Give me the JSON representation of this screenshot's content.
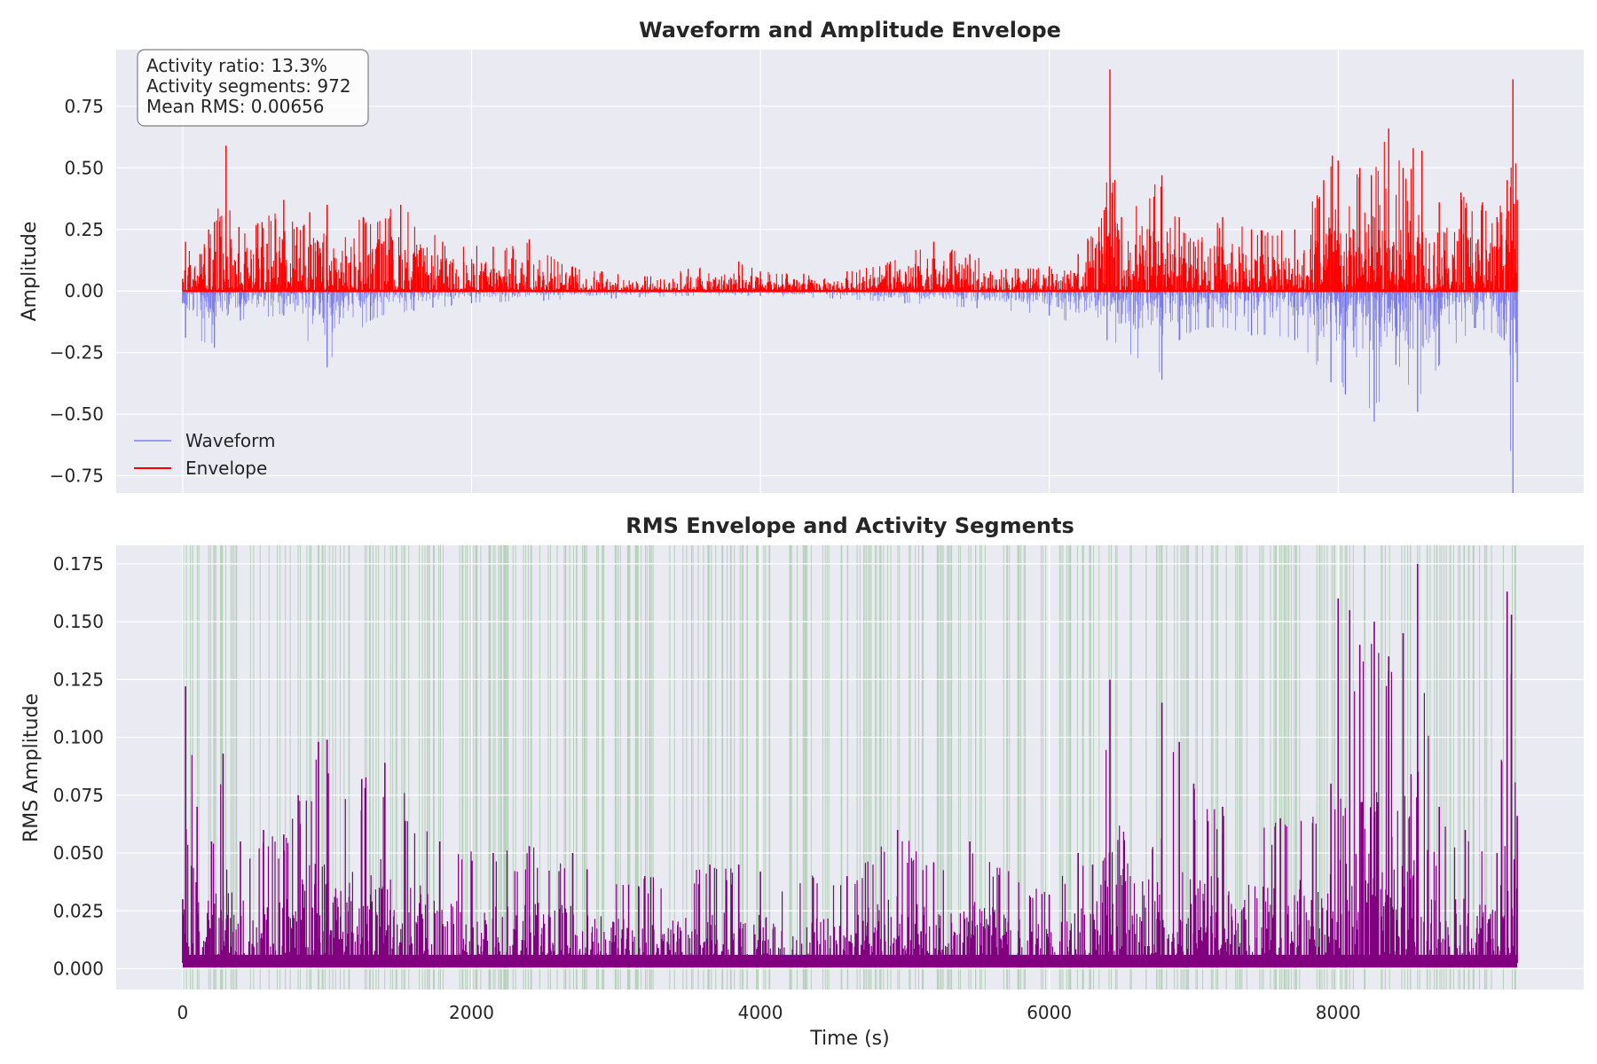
{
  "figure": {
    "top_panel": {
      "title": "Waveform and Amplitude Envelope",
      "ylabel": "Amplitude",
      "stats": [
        "Activity ratio: 13.3%",
        "Activity segments: 972",
        "Mean RMS: 0.00656"
      ],
      "legend": [
        {
          "label": "Waveform",
          "color": "#6b6bf0"
        },
        {
          "label": "Envelope",
          "color": "#ff0000"
        }
      ]
    },
    "bottom_panel": {
      "title": "RMS Envelope and Activity Segments",
      "ylabel": "RMS Amplitude",
      "xlabel": "Time (s)"
    }
  },
  "chart_data": [
    {
      "type": "line",
      "title": "Waveform and Amplitude Envelope",
      "xlabel": "",
      "ylabel": "Amplitude",
      "xlim": [
        -460,
        9700
      ],
      "ylim": [
        -0.82,
        0.98
      ],
      "x_ticks": [
        0,
        2000,
        4000,
        6000,
        8000
      ],
      "y_ticks": [
        -0.75,
        -0.5,
        -0.25,
        0.0,
        0.25,
        0.5,
        0.75
      ],
      "y_tick_labels": [
        "−0.75",
        "−0.50",
        "−0.25",
        "0.00",
        "0.25",
        "0.50",
        "0.75"
      ],
      "grid": true,
      "legend_position": "lower-left",
      "annotation_position": "top-left",
      "colors": {
        "waveform": "#6b6bf0",
        "envelope": "#ff0000"
      },
      "series": [
        {
          "name": "Envelope",
          "x": [
            0,
            20,
            120,
            180,
            220,
            300,
            390,
            550,
            700,
            790,
            880,
            1000,
            1250,
            1510,
            1800,
            2150,
            2400,
            2700,
            2900,
            3200,
            3500,
            3850,
            4000,
            4300,
            4600,
            4900,
            5200,
            5450,
            5700,
            6000,
            6200,
            6390,
            6420,
            6500,
            6780,
            6900,
            7000,
            7200,
            7400,
            7700,
            7900,
            7960,
            8000,
            8150,
            8230,
            8350,
            8450,
            8520,
            8580,
            8700,
            8850,
            9000,
            9100,
            9170,
            9210,
            9240
          ],
          "y": [
            0.05,
            0.2,
            0.15,
            0.25,
            0.28,
            0.59,
            0.26,
            0.28,
            0.37,
            0.26,
            0.32,
            0.35,
            0.3,
            0.35,
            0.2,
            0.18,
            0.21,
            0.1,
            0.08,
            0.06,
            0.09,
            0.12,
            0.08,
            0.07,
            0.08,
            0.12,
            0.2,
            0.15,
            0.09,
            0.1,
            0.15,
            0.34,
            0.9,
            0.3,
            0.47,
            0.3,
            0.2,
            0.3,
            0.25,
            0.25,
            0.45,
            0.55,
            0.53,
            0.5,
            0.47,
            0.66,
            0.5,
            0.58,
            0.57,
            0.36,
            0.4,
            0.36,
            0.3,
            0.45,
            0.86,
            0.37
          ]
        },
        {
          "name": "Waveform",
          "x": [
            0,
            20,
            220,
            400,
            700,
            1000,
            1300,
            1600,
            2000,
            2500,
            3000,
            3500,
            4000,
            4500,
            5000,
            5500,
            6000,
            6400,
            6780,
            6900,
            7100,
            7400,
            7700,
            7950,
            8050,
            8250,
            8400,
            8550,
            8700,
            8950,
            9150,
            9210,
            9240
          ],
          "y": [
            -0.05,
            -0.19,
            -0.23,
            -0.12,
            -0.1,
            -0.31,
            -0.12,
            -0.08,
            -0.05,
            -0.04,
            -0.03,
            -0.02,
            -0.02,
            -0.03,
            -0.05,
            -0.07,
            -0.1,
            -0.2,
            -0.36,
            -0.2,
            -0.15,
            -0.18,
            -0.2,
            -0.37,
            -0.42,
            -0.53,
            -0.3,
            -0.49,
            -0.3,
            -0.15,
            -0.2,
            -0.82,
            -0.37
          ]
        }
      ]
    },
    {
      "type": "line",
      "title": "RMS Envelope and Activity Segments",
      "xlabel": "Time (s)",
      "ylabel": "RMS Amplitude",
      "xlim": [
        -460,
        9700
      ],
      "ylim": [
        -0.009,
        0.183
      ],
      "x_ticks": [
        0,
        2000,
        4000,
        6000,
        8000
      ],
      "y_ticks": [
        0.0,
        0.025,
        0.05,
        0.075,
        0.1,
        0.125,
        0.15,
        0.175
      ],
      "y_tick_labels": [
        "0.000",
        "0.025",
        "0.050",
        "0.075",
        "0.100",
        "0.125",
        "0.150",
        "0.175"
      ],
      "grid": true,
      "activity_segments": {
        "count": 972,
        "x_range": [
          0,
          9240
        ],
        "color": "#2e8b2e"
      },
      "colors": {
        "rms": "#800080"
      },
      "series": [
        {
          "name": "RMS",
          "x": [
            0,
            20,
            100,
            200,
            280,
            400,
            560,
            700,
            800,
            940,
            1000,
            1240,
            1400,
            1780,
            2150,
            2400,
            2700,
            2800,
            3200,
            3650,
            3850,
            4000,
            4600,
            4950,
            5200,
            5450,
            6000,
            6200,
            6300,
            6420,
            6780,
            6900,
            7000,
            7200,
            7600,
            7950,
            8000,
            8080,
            8150,
            8250,
            8350,
            8450,
            8550,
            8700,
            8880,
            9100,
            9170,
            9200,
            9240
          ],
          "y": [
            0.03,
            0.122,
            0.07,
            0.055,
            0.093,
            0.055,
            0.06,
            0.058,
            0.075,
            0.098,
            0.099,
            0.082,
            0.089,
            0.055,
            0.05,
            0.053,
            0.05,
            0.043,
            0.04,
            0.045,
            0.045,
            0.042,
            0.04,
            0.06,
            0.046,
            0.055,
            0.032,
            0.05,
            0.045,
            0.125,
            0.115,
            0.098,
            0.08,
            0.07,
            0.065,
            0.08,
            0.16,
            0.155,
            0.14,
            0.15,
            0.135,
            0.145,
            0.175,
            0.07,
            0.06,
            0.05,
            0.163,
            0.153,
            0.066
          ]
        }
      ]
    }
  ]
}
